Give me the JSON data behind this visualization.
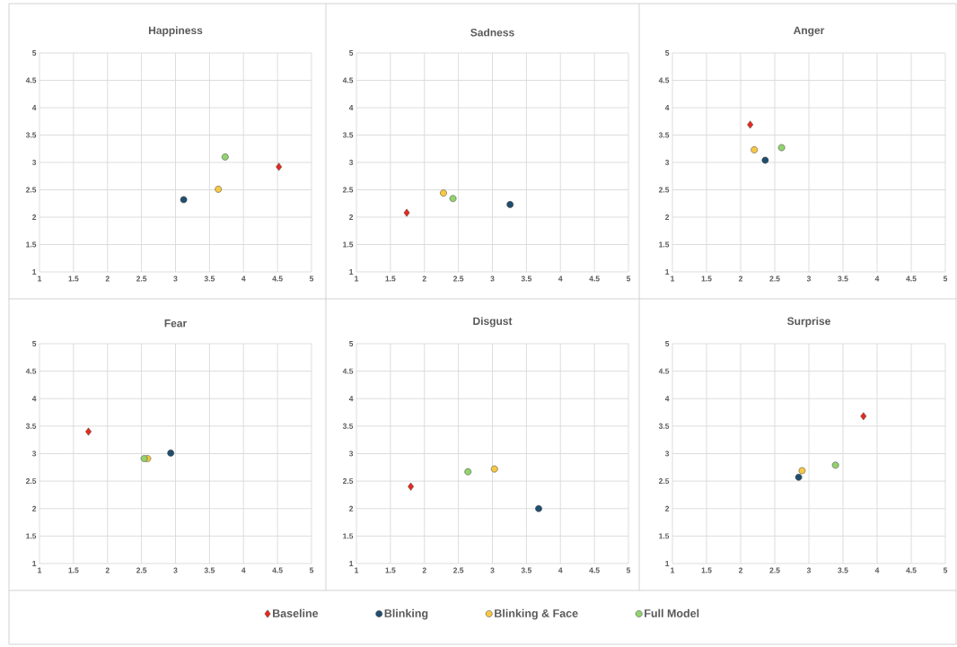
{
  "chart_data": [
    {
      "type": "scatter",
      "title": "Happiness",
      "xlim": [
        1,
        5
      ],
      "ylim": [
        1,
        5
      ],
      "xticks": [
        1,
        1.5,
        2,
        2.5,
        3,
        3.5,
        4,
        4.5,
        5
      ],
      "yticks": [
        1,
        1.5,
        2,
        2.5,
        3,
        3.5,
        4,
        4.5,
        5
      ],
      "grid": true,
      "legend": "bottom",
      "series": [
        {
          "name": "Baseline",
          "color": "#e8291c",
          "marker": "diamond",
          "x": [
            4.52
          ],
          "values": [
            2.92
          ]
        },
        {
          "name": "Blinking",
          "color": "#1f4e6e",
          "marker": "circle",
          "x": [
            3.12
          ],
          "values": [
            2.32
          ]
        },
        {
          "name": "Blinking & Face",
          "color": "#f7c843",
          "marker": "circle",
          "x": [
            3.63
          ],
          "values": [
            2.51
          ]
        },
        {
          "name": "Full Model",
          "color": "#92d36e",
          "marker": "circle",
          "x": [
            3.73
          ],
          "values": [
            3.1
          ]
        }
      ]
    },
    {
      "type": "scatter",
      "title": "Sadness",
      "xlim": [
        1,
        5
      ],
      "ylim": [
        1,
        5
      ],
      "xticks": [
        1,
        1.5,
        2,
        2.5,
        3,
        3.5,
        4,
        4.5,
        5
      ],
      "yticks": [
        1,
        1.5,
        2,
        2.5,
        3,
        3.5,
        4,
        4.5,
        5
      ],
      "grid": true,
      "series": [
        {
          "color": "#e8291c",
          "marker": "diamond",
          "x": [
            1.74
          ],
          "values": [
            2.08
          ]
        },
        {
          "color": "#1f4e6e",
          "marker": "circle",
          "x": [
            3.26
          ],
          "values": [
            2.23
          ]
        },
        {
          "color": "#f7c843",
          "marker": "circle",
          "x": [
            2.28
          ],
          "values": [
            2.44
          ]
        },
        {
          "color": "#92d36e",
          "marker": "circle",
          "x": [
            2.42
          ],
          "values": [
            2.34
          ]
        }
      ]
    },
    {
      "type": "scatter",
      "title": "Anger",
      "xlim": [
        1,
        5
      ],
      "ylim": [
        1,
        5
      ],
      "xticks": [
        1,
        1.5,
        2,
        2.5,
        3,
        3.5,
        4,
        4.5,
        5
      ],
      "yticks": [
        1,
        1.5,
        2,
        2.5,
        3,
        3.5,
        4,
        4.5,
        5
      ],
      "grid": true,
      "series": [
        {
          "color": "#e8291c",
          "marker": "diamond",
          "x": [
            2.14
          ],
          "values": [
            3.69
          ]
        },
        {
          "color": "#1f4e6e",
          "marker": "circle",
          "x": [
            2.36
          ],
          "values": [
            3.04
          ]
        },
        {
          "color": "#f7c843",
          "marker": "circle",
          "x": [
            2.2
          ],
          "values": [
            3.23
          ]
        },
        {
          "color": "#92d36e",
          "marker": "circle",
          "x": [
            2.6
          ],
          "values": [
            3.27
          ]
        }
      ]
    },
    {
      "type": "scatter",
      "title": "Fear",
      "xlim": [
        1,
        5
      ],
      "ylim": [
        1,
        5
      ],
      "xticks": [
        1,
        1.5,
        2,
        2.5,
        3,
        3.5,
        4,
        4.5,
        5
      ],
      "yticks": [
        1,
        1.5,
        2,
        2.5,
        3,
        3.5,
        4,
        4.5,
        5
      ],
      "grid": true,
      "series": [
        {
          "color": "#e8291c",
          "marker": "diamond",
          "x": [
            1.72
          ],
          "values": [
            3.4
          ]
        },
        {
          "color": "#1f4e6e",
          "marker": "circle",
          "x": [
            2.93
          ],
          "values": [
            3.01
          ]
        },
        {
          "color": "#f7c843",
          "marker": "circle",
          "x": [
            2.59
          ],
          "values": [
            2.91
          ]
        },
        {
          "color": "#92d36e",
          "marker": "circle",
          "x": [
            2.54
          ],
          "values": [
            2.91
          ]
        }
      ]
    },
    {
      "type": "scatter",
      "title": "Disgust",
      "xlim": [
        1,
        5
      ],
      "ylim": [
        1,
        5
      ],
      "xticks": [
        1,
        1.5,
        2,
        2.5,
        3,
        3.5,
        4,
        4.5,
        5
      ],
      "yticks": [
        1,
        1.5,
        2,
        2.5,
        3,
        3.5,
        4,
        4.5,
        5
      ],
      "grid": true,
      "series": [
        {
          "color": "#e8291c",
          "marker": "diamond",
          "x": [
            1.8
          ],
          "values": [
            2.4
          ]
        },
        {
          "color": "#1f4e6e",
          "marker": "circle",
          "x": [
            3.68
          ],
          "values": [
            2.0
          ]
        },
        {
          "color": "#f7c843",
          "marker": "circle",
          "x": [
            3.03
          ],
          "values": [
            2.72
          ]
        },
        {
          "color": "#92d36e",
          "marker": "circle",
          "x": [
            2.64
          ],
          "values": [
            2.67
          ]
        }
      ]
    },
    {
      "type": "scatter",
      "title": "Surprise",
      "xlim": [
        1,
        5
      ],
      "ylim": [
        1,
        5
      ],
      "xticks": [
        1,
        1.5,
        2,
        2.5,
        3,
        3.5,
        4,
        4.5,
        5
      ],
      "yticks": [
        1,
        1.5,
        2,
        2.5,
        3,
        3.5,
        4,
        4.5,
        5
      ],
      "grid": true,
      "series": [
        {
          "color": "#e8291c",
          "marker": "diamond",
          "x": [
            3.8
          ],
          "values": [
            3.68
          ]
        },
        {
          "color": "#1f4e6e",
          "marker": "circle",
          "x": [
            2.85
          ],
          "values": [
            2.57
          ]
        },
        {
          "color": "#f7c843",
          "marker": "circle",
          "x": [
            2.9
          ],
          "values": [
            2.69
          ]
        },
        {
          "color": "#92d36e",
          "marker": "circle",
          "x": [
            3.39
          ],
          "values": [
            2.79
          ]
        }
      ]
    }
  ]
}
